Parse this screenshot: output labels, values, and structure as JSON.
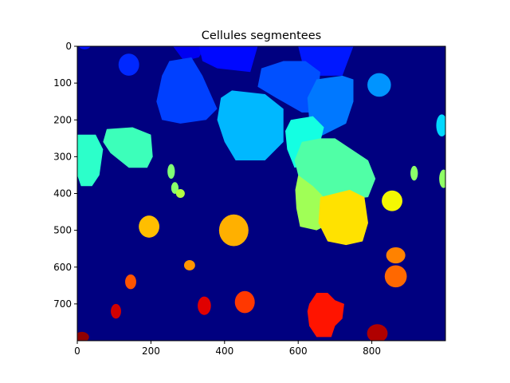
{
  "chart_data": {
    "type": "heatmap",
    "title": "Cellules segmentees",
    "xlabel": "",
    "ylabel": "",
    "xlim": [
      0,
      1000
    ],
    "ylim": [
      800,
      0
    ],
    "y_axis_inverted": true,
    "grid": false,
    "colormap": "jet",
    "background_color": "#000080",
    "x_ticks": [
      0,
      200,
      400,
      600,
      800
    ],
    "y_ticks": [
      0,
      100,
      200,
      300,
      400,
      500,
      600,
      700
    ],
    "x_tick_labels": [
      "0",
      "200",
      "400",
      "600",
      "800"
    ],
    "y_tick_labels": [
      "0",
      "100",
      "200",
      "300",
      "400",
      "500",
      "600",
      "700"
    ],
    "regions": [
      {
        "type": "ellipse",
        "cx": 20,
        "cy": 0,
        "rx": 15,
        "ry": 8,
        "color": "#0010ff"
      },
      {
        "type": "ellipse",
        "cx": 140,
        "cy": 50,
        "rx": 28,
        "ry": 30,
        "color": "#0028ff"
      },
      {
        "type": "poly",
        "points": [
          [
            260,
            0
          ],
          [
            350,
            0
          ],
          [
            330,
            30
          ],
          [
            290,
            40
          ]
        ],
        "color": "#0000f1"
      },
      {
        "type": "poly",
        "points": [
          [
            330,
            0
          ],
          [
            490,
            0
          ],
          [
            470,
            70
          ],
          [
            380,
            60
          ],
          [
            340,
            40
          ]
        ],
        "color": "#0008ff"
      },
      {
        "type": "poly",
        "points": [
          [
            600,
            0
          ],
          [
            750,
            0
          ],
          [
            720,
            80
          ],
          [
            640,
            80
          ],
          [
            610,
            40
          ]
        ],
        "color": "#0018ff"
      },
      {
        "type": "poly",
        "points": [
          [
            250,
            40
          ],
          [
            310,
            30
          ],
          [
            340,
            80
          ],
          [
            380,
            170
          ],
          [
            350,
            200
          ],
          [
            280,
            210
          ],
          [
            230,
            200
          ],
          [
            215,
            150
          ],
          [
            230,
            80
          ]
        ],
        "color": "#0040ff"
      },
      {
        "type": "poly",
        "points": [
          [
            500,
            60
          ],
          [
            560,
            40
          ],
          [
            620,
            40
          ],
          [
            660,
            70
          ],
          [
            650,
            180
          ],
          [
            610,
            180
          ],
          [
            540,
            140
          ],
          [
            490,
            110
          ]
        ],
        "color": "#0050ff"
      },
      {
        "type": "poly",
        "points": [
          [
            650,
            90
          ],
          [
            720,
            80
          ],
          [
            750,
            90
          ],
          [
            750,
            150
          ],
          [
            730,
            210
          ],
          [
            690,
            230
          ],
          [
            650,
            250
          ],
          [
            630,
            200
          ],
          [
            625,
            140
          ]
        ],
        "color": "#0078ff"
      },
      {
        "type": "ellipse",
        "cx": 820,
        "cy": 105,
        "rx": 32,
        "ry": 32,
        "color": "#0094ff"
      },
      {
        "type": "poly",
        "points": [
          [
            420,
            120
          ],
          [
            510,
            130
          ],
          [
            560,
            170
          ],
          [
            560,
            260
          ],
          [
            510,
            310
          ],
          [
            430,
            310
          ],
          [
            400,
            260
          ],
          [
            380,
            200
          ],
          [
            390,
            140
          ]
        ],
        "color": "#00b8ff"
      },
      {
        "type": "ellipse",
        "cx": 990,
        "cy": 215,
        "rx": 15,
        "ry": 30,
        "color": "#00d8ff"
      },
      {
        "type": "poly",
        "points": [
          [
            580,
            200
          ],
          [
            640,
            190
          ],
          [
            670,
            220
          ],
          [
            660,
            260
          ],
          [
            630,
            320
          ],
          [
            590,
            330
          ],
          [
            570,
            280
          ],
          [
            565,
            230
          ]
        ],
        "color": "#14ffe2"
      },
      {
        "type": "poly",
        "points": [
          [
            0,
            240
          ],
          [
            50,
            240
          ],
          [
            70,
            280
          ],
          [
            60,
            350
          ],
          [
            40,
            380
          ],
          [
            10,
            380
          ],
          [
            0,
            350
          ]
        ],
        "color": "#2cffca"
      },
      {
        "type": "poly",
        "points": [
          [
            80,
            225
          ],
          [
            150,
            220
          ],
          [
            200,
            240
          ],
          [
            205,
            300
          ],
          [
            190,
            330
          ],
          [
            140,
            330
          ],
          [
            90,
            290
          ],
          [
            70,
            260
          ]
        ],
        "color": "#3cffba"
      },
      {
        "type": "poly",
        "points": [
          [
            610,
            260
          ],
          [
            660,
            250
          ],
          [
            700,
            250
          ],
          [
            790,
            310
          ],
          [
            810,
            360
          ],
          [
            790,
            410
          ],
          [
            700,
            420
          ],
          [
            640,
            400
          ],
          [
            600,
            350
          ],
          [
            590,
            310
          ]
        ],
        "color": "#50ffa6"
      },
      {
        "type": "ellipse",
        "cx": 255,
        "cy": 340,
        "rx": 10,
        "ry": 20,
        "color": "#80ff76"
      },
      {
        "type": "ellipse",
        "cx": 265,
        "cy": 385,
        "rx": 10,
        "ry": 16,
        "color": "#8cff6a"
      },
      {
        "type": "ellipse",
        "cx": 280,
        "cy": 400,
        "rx": 12,
        "ry": 12,
        "color": "#b4ff42"
      },
      {
        "type": "ellipse",
        "cx": 915,
        "cy": 345,
        "rx": 10,
        "ry": 20,
        "color": "#8cff6a"
      },
      {
        "type": "ellipse",
        "cx": 995,
        "cy": 360,
        "rx": 12,
        "ry": 25,
        "color": "#90ff66"
      },
      {
        "type": "poly",
        "points": [
          [
            600,
            350
          ],
          [
            640,
            380
          ],
          [
            680,
            420
          ],
          [
            690,
            480
          ],
          [
            650,
            500
          ],
          [
            605,
            490
          ],
          [
            595,
            440
          ],
          [
            592,
            390
          ]
        ],
        "color": "#a0ff56"
      },
      {
        "type": "poly",
        "points": [
          [
            660,
            410
          ],
          [
            740,
            390
          ],
          [
            780,
            410
          ],
          [
            790,
            480
          ],
          [
            775,
            530
          ],
          [
            730,
            540
          ],
          [
            680,
            530
          ],
          [
            655,
            480
          ]
        ],
        "color": "#ffe200"
      },
      {
        "type": "ellipse",
        "cx": 855,
        "cy": 420,
        "rx": 28,
        "ry": 28,
        "color": "#f4f802"
      },
      {
        "type": "ellipse",
        "cx": 195,
        "cy": 490,
        "rx": 28,
        "ry": 30,
        "color": "#ffbe00"
      },
      {
        "type": "ellipse",
        "cx": 425,
        "cy": 500,
        "rx": 40,
        "ry": 43,
        "color": "#ffb000"
      },
      {
        "type": "ellipse",
        "cx": 305,
        "cy": 595,
        "rx": 15,
        "ry": 14,
        "color": "#ff9400"
      },
      {
        "type": "ellipse",
        "cx": 865,
        "cy": 568,
        "rx": 26,
        "ry": 22,
        "color": "#ff8200"
      },
      {
        "type": "ellipse",
        "cx": 865,
        "cy": 625,
        "rx": 30,
        "ry": 30,
        "color": "#ff6800"
      },
      {
        "type": "ellipse",
        "cx": 145,
        "cy": 640,
        "rx": 15,
        "ry": 20,
        "color": "#ff5400"
      },
      {
        "type": "ellipse",
        "cx": 455,
        "cy": 695,
        "rx": 27,
        "ry": 30,
        "color": "#ff3800"
      },
      {
        "type": "poly",
        "points": [
          [
            630,
            700
          ],
          [
            650,
            670
          ],
          [
            680,
            670
          ],
          [
            700,
            690
          ],
          [
            725,
            700
          ],
          [
            720,
            740
          ],
          [
            700,
            760
          ],
          [
            690,
            790
          ],
          [
            650,
            790
          ],
          [
            630,
            760
          ],
          [
            625,
            720
          ]
        ],
        "color": "#ff1400"
      },
      {
        "type": "ellipse",
        "cx": 345,
        "cy": 705,
        "rx": 18,
        "ry": 25,
        "color": "#e00000"
      },
      {
        "type": "ellipse",
        "cx": 105,
        "cy": 720,
        "rx": 14,
        "ry": 20,
        "color": "#d00000"
      },
      {
        "type": "ellipse",
        "cx": 815,
        "cy": 780,
        "rx": 28,
        "ry": 25,
        "color": "#b00000"
      },
      {
        "type": "ellipse",
        "cx": 12,
        "cy": 790,
        "rx": 20,
        "ry": 14,
        "color": "#900000"
      }
    ]
  }
}
